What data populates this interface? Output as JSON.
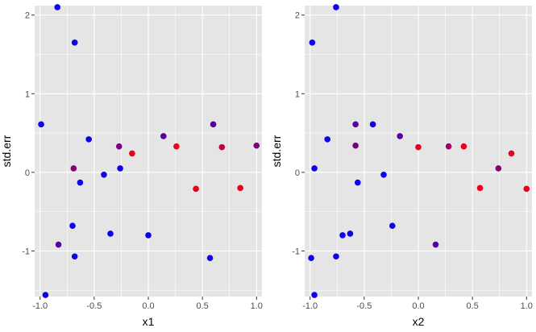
{
  "chart_data": [
    {
      "type": "scatter",
      "xlabel": "x1",
      "ylabel": "std.err",
      "xlim": [
        -1.05,
        1.05
      ],
      "ylim": [
        -1.58,
        2.12
      ],
      "xticks": [
        -1.0,
        -0.5,
        0.0,
        0.5,
        1.0
      ],
      "xtick_labels": [
        "-1.0",
        "-0.5",
        "0.0",
        "0.5",
        "1.0"
      ],
      "yticks": [
        -1,
        0,
        1,
        2
      ],
      "ytick_labels": [
        "-1",
        "0",
        "1",
        "2"
      ],
      "grid": true,
      "points": [
        {
          "x": -0.84,
          "y": 2.1,
          "color": "#1000f0"
        },
        {
          "x": -0.68,
          "y": 1.65,
          "color": "#1000f0"
        },
        {
          "x": -0.99,
          "y": 0.61,
          "color": "#1000f0"
        },
        {
          "x": -0.55,
          "y": 0.42,
          "color": "#1000f0"
        },
        {
          "x": -0.27,
          "y": 0.33,
          "color": "#7a0080"
        },
        {
          "x": -0.15,
          "y": 0.24,
          "color": "#e8001c"
        },
        {
          "x": 0.14,
          "y": 0.46,
          "color": "#5a00a0"
        },
        {
          "x": 0.26,
          "y": 0.33,
          "color": "#e8001c"
        },
        {
          "x": 0.6,
          "y": 0.61,
          "color": "#5a00a0"
        },
        {
          "x": 0.68,
          "y": 0.32,
          "color": "#c00040"
        },
        {
          "x": 1.0,
          "y": 0.34,
          "color": "#7a0080"
        },
        {
          "x": -0.69,
          "y": 0.05,
          "color": "#8a0070"
        },
        {
          "x": -0.26,
          "y": 0.05,
          "color": "#1000f0"
        },
        {
          "x": -0.63,
          "y": -0.13,
          "color": "#1000f0"
        },
        {
          "x": -0.41,
          "y": -0.03,
          "color": "#1000f0"
        },
        {
          "x": 0.44,
          "y": -0.21,
          "color": "#e8001c"
        },
        {
          "x": 0.85,
          "y": -0.2,
          "color": "#e8001c"
        },
        {
          "x": -0.7,
          "y": -0.68,
          "color": "#1000f0"
        },
        {
          "x": -0.35,
          "y": -0.78,
          "color": "#1000f0"
        },
        {
          "x": 0.0,
          "y": -0.8,
          "color": "#1000f0"
        },
        {
          "x": -0.83,
          "y": -0.92,
          "color": "#5a00a0"
        },
        {
          "x": -0.68,
          "y": -1.07,
          "color": "#1000f0"
        },
        {
          "x": 0.57,
          "y": -1.09,
          "color": "#1000f0"
        },
        {
          "x": -0.95,
          "y": -1.56,
          "color": "#1000f0"
        }
      ]
    },
    {
      "type": "scatter",
      "xlabel": "x2",
      "ylabel": "std.err",
      "xlim": [
        -1.05,
        1.05
      ],
      "ylim": [
        -1.58,
        2.12
      ],
      "xticks": [
        -1.0,
        -0.5,
        0.0,
        0.5,
        1.0
      ],
      "xtick_labels": [
        "-1.0",
        "-0.5",
        "0.0",
        "0.5",
        "1.0"
      ],
      "yticks": [
        -1,
        0,
        1,
        2
      ],
      "ytick_labels": [
        "-1",
        "0",
        "1",
        "2"
      ],
      "grid": true,
      "points": [
        {
          "x": -0.76,
          "y": 2.1,
          "color": "#1000f0"
        },
        {
          "x": -0.98,
          "y": 1.65,
          "color": "#1000f0"
        },
        {
          "x": -0.84,
          "y": 0.42,
          "color": "#1000f0"
        },
        {
          "x": -0.58,
          "y": 0.61,
          "color": "#5a00a0"
        },
        {
          "x": -0.42,
          "y": 0.61,
          "color": "#1000f0"
        },
        {
          "x": -0.58,
          "y": 0.34,
          "color": "#7a0080"
        },
        {
          "x": -0.17,
          "y": 0.46,
          "color": "#5a00a0"
        },
        {
          "x": 0.0,
          "y": 0.32,
          "color": "#e8001c"
        },
        {
          "x": 0.28,
          "y": 0.33,
          "color": "#a00060"
        },
        {
          "x": 0.42,
          "y": 0.33,
          "color": "#e8001c"
        },
        {
          "x": 0.86,
          "y": 0.24,
          "color": "#e8001c"
        },
        {
          "x": -0.96,
          "y": 0.05,
          "color": "#1000f0"
        },
        {
          "x": 0.74,
          "y": 0.05,
          "color": "#8a0070"
        },
        {
          "x": -0.56,
          "y": -0.13,
          "color": "#1000f0"
        },
        {
          "x": -0.32,
          "y": -0.03,
          "color": "#1000f0"
        },
        {
          "x": 0.57,
          "y": -0.2,
          "color": "#e8001c"
        },
        {
          "x": 1.0,
          "y": -0.21,
          "color": "#e8001c"
        },
        {
          "x": -0.24,
          "y": -0.68,
          "color": "#1000f0"
        },
        {
          "x": -0.7,
          "y": -0.8,
          "color": "#1000f0"
        },
        {
          "x": -0.63,
          "y": -0.78,
          "color": "#1000f0"
        },
        {
          "x": -0.76,
          "y": -1.07,
          "color": "#1000f0"
        },
        {
          "x": -0.99,
          "y": -1.09,
          "color": "#1000f0"
        },
        {
          "x": 0.16,
          "y": -0.92,
          "color": "#5a00a0"
        },
        {
          "x": -0.96,
          "y": -1.56,
          "color": "#1000f0"
        }
      ]
    }
  ],
  "style": {
    "panel_background": "#e5e5e5",
    "grid_color": "#ffffff",
    "tick_color": "#333333",
    "tick_text_color": "#4d4d4d"
  }
}
